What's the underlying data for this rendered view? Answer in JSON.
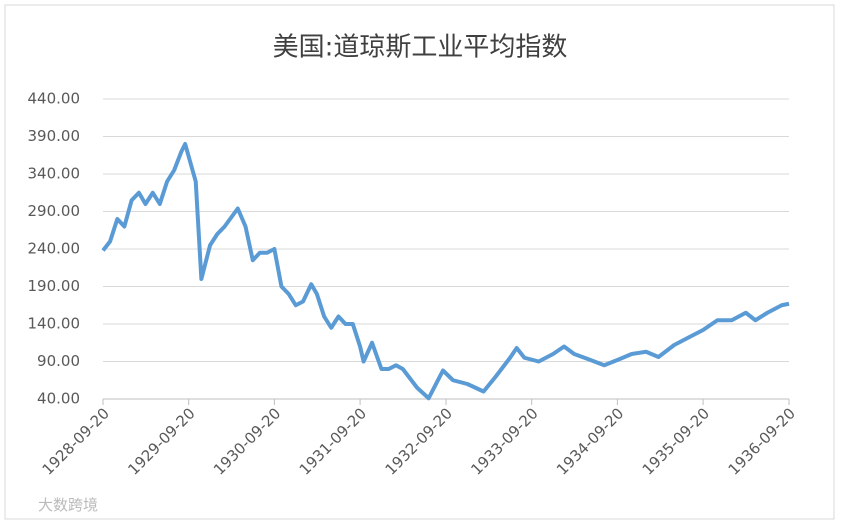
{
  "chart_data": {
    "type": "line",
    "title": "美国:道琼斯工业平均指数",
    "watermark": "大数跨境",
    "x": [
      "1928-09-20",
      "1928-10-20",
      "1928-11-20",
      "1928-12-20",
      "1929-01-20",
      "1929-02-20",
      "1929-03-20",
      "1929-04-20",
      "1929-05-20",
      "1929-06-20",
      "1929-07-20",
      "1929-08-20",
      "1929-09-05",
      "1929-10-20",
      "1929-11-13",
      "1929-12-20",
      "1930-01-20",
      "1930-02-20",
      "1930-04-17",
      "1930-05-20",
      "1930-06-20",
      "1930-07-20",
      "1930-08-20",
      "1930-09-20",
      "1930-10-20",
      "1930-11-20",
      "1930-12-20",
      "1931-01-20",
      "1931-02-24",
      "1931-03-20",
      "1931-04-20",
      "1931-05-20",
      "1931-06-20",
      "1931-07-20",
      "1931-08-20",
      "1931-09-20",
      "1931-10-05",
      "1931-11-10",
      "1931-12-20",
      "1932-01-20",
      "1932-02-20",
      "1932-03-20",
      "1932-05-20",
      "1932-07-08",
      "1932-09-07",
      "1932-10-20",
      "1932-12-20",
      "1933-02-27",
      "1933-04-20",
      "1933-06-20",
      "1933-07-18",
      "1933-08-20",
      "1933-10-20",
      "1933-12-20",
      "1934-02-05",
      "1934-03-20",
      "1934-05-20",
      "1934-07-26",
      "1934-09-20",
      "1934-11-20",
      "1935-01-20",
      "1935-03-14",
      "1935-05-20",
      "1935-07-20",
      "1935-09-20",
      "1935-11-20",
      "1936-01-20",
      "1936-03-20",
      "1936-04-30",
      "1936-06-20",
      "1936-08-20",
      "1936-09-20"
    ],
    "series": [
      {
        "color": "#5b9bd5",
        "values": [
          238,
          250,
          280,
          270,
          305,
          315,
          300,
          315,
          300,
          330,
          345,
          370,
          380,
          330,
          200,
          245,
          260,
          270,
          294,
          270,
          225,
          235,
          235,
          240,
          190,
          180,
          165,
          170,
          193,
          180,
          150,
          135,
          150,
          140,
          140,
          110,
          90,
          115,
          80,
          80,
          85,
          80,
          55,
          41,
          78,
          65,
          60,
          50,
          70,
          95,
          108,
          95,
          90,
          100,
          110,
          100,
          93,
          85,
          92,
          100,
          103,
          96,
          112,
          122,
          132,
          145,
          145,
          155,
          145,
          155,
          165,
          167
        ]
      }
    ],
    "xlim": [
      "1928-09-20",
      "1936-09-20"
    ],
    "xticks": [
      "1928-09-20",
      "1929-09-20",
      "1930-09-20",
      "1931-09-20",
      "1932-09-20",
      "1933-09-20",
      "1934-09-20",
      "1935-09-20",
      "1936-09-20"
    ],
    "ylim": [
      40,
      440
    ],
    "yticks": [
      {
        "value": 40,
        "label": "40.00"
      },
      {
        "value": 90,
        "label": "90.00"
      },
      {
        "value": 140,
        "label": "140.00"
      },
      {
        "value": 190,
        "label": "190.00"
      },
      {
        "value": 240,
        "label": "240.00"
      },
      {
        "value": 290,
        "label": "290.00"
      },
      {
        "value": 340,
        "label": "340.00"
      },
      {
        "value": 390,
        "label": "390.00"
      },
      {
        "value": 440,
        "label": "440.00"
      }
    ],
    "grid": true
  }
}
